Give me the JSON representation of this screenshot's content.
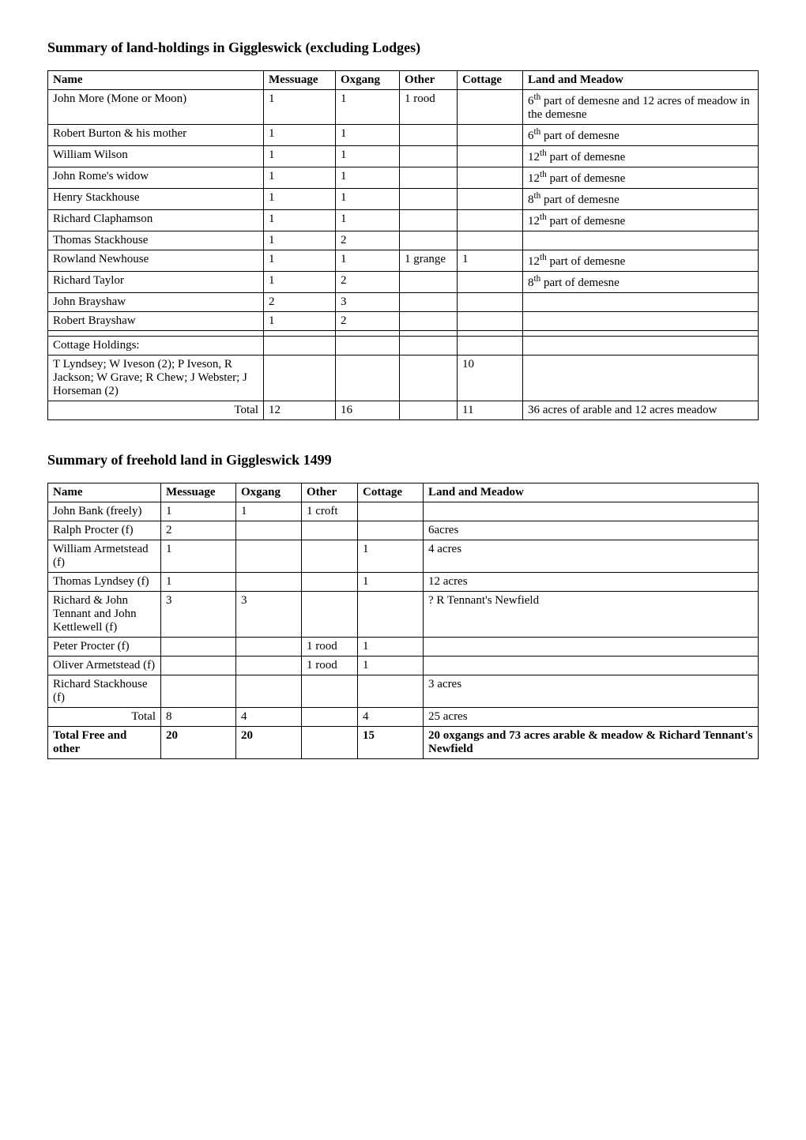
{
  "tables": {
    "t1": {
      "title": "Summary of land-holdings in Giggleswick (excluding Lodges)",
      "headers": {
        "name": "Name",
        "messuage": "Messuage",
        "oxgang": "Oxgang",
        "other": "Other",
        "cottage": "Cottage",
        "land": "Land and Meadow"
      },
      "rows": {
        "r0": {
          "name": "John More (Mone or Moon)",
          "mess": "1",
          "ox": "1",
          "oth": "1 rood",
          "cot": "",
          "land_pre": "6",
          "land_sup": "th",
          "land_post": " part of demesne and 12 acres of meadow in the demesne"
        },
        "r1": {
          "name": "Robert Burton & his mother",
          "mess": "1",
          "ox": "1",
          "oth": "",
          "cot": "",
          "land_pre": "6",
          "land_sup": "th",
          "land_post": " part of demesne"
        },
        "r2": {
          "name": "William Wilson",
          "mess": "1",
          "ox": "1",
          "oth": "",
          "cot": "",
          "land_pre": "12",
          "land_sup": "th",
          "land_post": " part of demesne"
        },
        "r3": {
          "name": "John Rome's widow",
          "mess": "1",
          "ox": "1",
          "oth": "",
          "cot": "",
          "land_pre": "12",
          "land_sup": "th",
          "land_post": " part of demesne"
        },
        "r4": {
          "name": "Henry Stackhouse",
          "mess": "1",
          "ox": "1",
          "oth": "",
          "cot": "",
          "land_pre": "8",
          "land_sup": "th",
          "land_post": " part of demesne"
        },
        "r5": {
          "name": "Richard Claphamson",
          "mess": "1",
          "ox": "1",
          "oth": "",
          "cot": "",
          "land_pre": "12",
          "land_sup": "th",
          "land_post": " part of demesne"
        },
        "r6": {
          "name": "Thomas Stackhouse",
          "mess": "1",
          "ox": "2",
          "oth": "",
          "cot": "",
          "land": ""
        },
        "r7": {
          "name": "Rowland Newhouse",
          "mess": "1",
          "ox": "1",
          "oth": "1 grange",
          "cot": "1",
          "land_pre": "12",
          "land_sup": "th",
          "land_post": " part of demesne"
        },
        "r8": {
          "name": "Richard Taylor",
          "mess": "1",
          "ox": "2",
          "oth": "",
          "cot": "",
          "land_pre": "8",
          "land_sup": "th",
          "land_post": " part of demesne"
        },
        "r9": {
          "name": "John Brayshaw",
          "mess": "2",
          "ox": "3",
          "oth": "",
          "cot": "",
          "land": ""
        },
        "r10": {
          "name": "Robert Brayshaw",
          "mess": "1",
          "ox": "2",
          "oth": "",
          "cot": "",
          "land": ""
        },
        "r11": {
          "name": "",
          "mess": "",
          "ox": "",
          "oth": "",
          "cot": "",
          "land": ""
        },
        "r12": {
          "name": "Cottage Holdings:",
          "mess": "",
          "ox": "",
          "oth": "",
          "cot": "",
          "land": ""
        },
        "r13": {
          "name": "T Lyndsey; W Iveson (2); P Iveson, R Jackson; W Grave; R Chew; J Webster; J Horseman (2)",
          "mess": "",
          "ox": "",
          "oth": "",
          "cot": "10",
          "land": ""
        },
        "total": {
          "label": "Total",
          "mess": "12",
          "ox": "16",
          "oth": "",
          "cot": "11",
          "land": "36 acres of arable and 12 acres meadow"
        }
      }
    },
    "t2": {
      "title": "Summary of freehold land in Giggleswick 1499",
      "headers": {
        "name": "Name",
        "messuage": "Messuage",
        "oxgang": "Oxgang",
        "other": "Other",
        "cottage": "Cottage",
        "land": "Land and Meadow"
      },
      "rows": {
        "r0": {
          "name": "John Bank (freely)",
          "mess": "1",
          "ox": "1",
          "oth": "1 croft",
          "cot": "",
          "land": ""
        },
        "r1": {
          "name": "Ralph Procter (f)",
          "mess": "2",
          "ox": "",
          "oth": "",
          "cot": "",
          "land": "6acres"
        },
        "r2": {
          "name": "William Armetstead (f)",
          "mess": "1",
          "ox": "",
          "oth": "",
          "cot": "1",
          "land": "4 acres"
        },
        "r3": {
          "name": "Thomas Lyndsey (f)",
          "mess": "1",
          "ox": "",
          "oth": "",
          "cot": "1",
          "land": "12 acres"
        },
        "r4": {
          "name": "Richard & John Tennant and John Kettlewell (f)",
          "mess": "3",
          "ox": "3",
          "oth": "",
          "cot": "",
          "land": "? R Tennant's Newfield"
        },
        "r5": {
          "name": "Peter Procter (f)",
          "mess": "",
          "ox": "",
          "oth": "1 rood",
          "cot": "1",
          "land": ""
        },
        "r6": {
          "name": "Oliver Armetstead (f)",
          "mess": "",
          "ox": "",
          "oth": "1 rood",
          "cot": "1",
          "land": ""
        },
        "r7": {
          "name": "Richard Stackhouse (f)",
          "mess": "",
          "ox": "",
          "oth": "",
          "cot": "",
          "land": "3 acres"
        },
        "total": {
          "label": "Total",
          "mess": "8",
          "ox": "4",
          "oth": "",
          "cot": "4",
          "land": "25 acres"
        },
        "grand": {
          "label": "Total Free and other",
          "mess": "20",
          "ox": "20",
          "oth": "",
          "cot": "15",
          "land": "20 oxgangs and 73 acres arable & meadow & Richard Tennant's Newfield"
        }
      }
    }
  }
}
